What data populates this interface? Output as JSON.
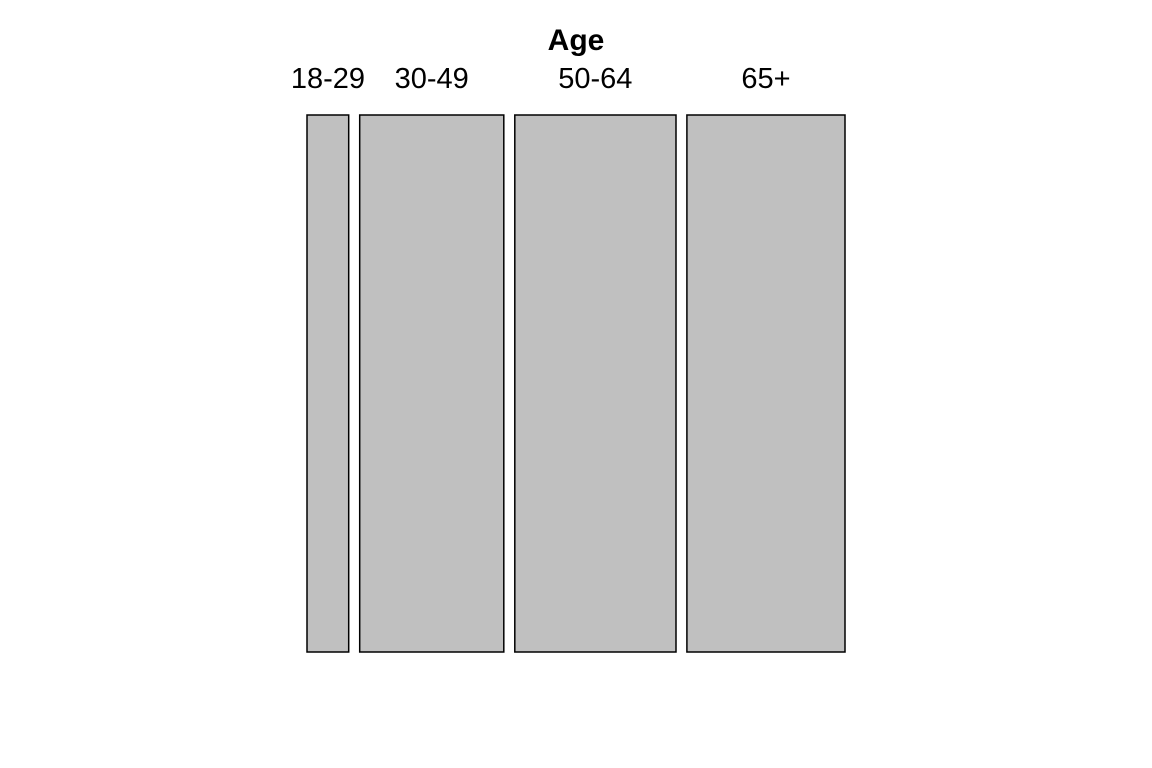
{
  "chart_data": {
    "type": "mosaic",
    "title": "",
    "xlabel": "Age",
    "ylabel": "",
    "categories": [
      "18-29",
      "30-49",
      "50-64",
      "65+"
    ],
    "proportions": [
      0.0785,
      0.2711,
      0.3033,
      0.2975
    ],
    "grid": false,
    "legend": "none",
    "fill_color": "#c0c0c0",
    "stroke_color": "#000000"
  }
}
